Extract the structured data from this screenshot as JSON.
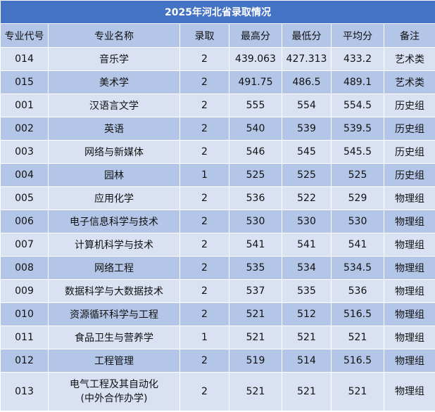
{
  "header": {
    "title": "2025年河北省录取情况"
  },
  "table": {
    "columns": [
      "专业代号",
      "专业名称",
      "录取",
      "最高分",
      "最低分",
      "平均分",
      "备注"
    ],
    "rows": [
      [
        "014",
        "音乐学",
        "2",
        "439.063",
        "427.313",
        "433.2",
        "艺术类"
      ],
      [
        "015",
        "美术学",
        "2",
        "491.75",
        "486.5",
        "489.1",
        "艺术类"
      ],
      [
        "001",
        "汉语言文学",
        "2",
        "555",
        "554",
        "554.5",
        "历史组"
      ],
      [
        "002",
        "英语",
        "2",
        "540",
        "539",
        "539.5",
        "历史组"
      ],
      [
        "003",
        "网络与新媒体",
        "2",
        "546",
        "545",
        "545.5",
        "历史组"
      ],
      [
        "004",
        "园林",
        "1",
        "525",
        "525",
        "525",
        "历史组"
      ],
      [
        "005",
        "应用化学",
        "2",
        "536",
        "522",
        "529",
        "物理组"
      ],
      [
        "006",
        "电子信息科学与技术",
        "2",
        "530",
        "530",
        "530",
        "物理组"
      ],
      [
        "007",
        "计算机科学与技术",
        "2",
        "541",
        "541",
        "541",
        "物理组"
      ],
      [
        "008",
        "网络工程",
        "2",
        "535",
        "534",
        "534.5",
        "物理组"
      ],
      [
        "009",
        "数据科学与大数据技术",
        "2",
        "537",
        "535",
        "536",
        "物理组"
      ],
      [
        "010",
        "资源循环科学与工程",
        "2",
        "521",
        "512",
        "516.5",
        "物理组"
      ],
      [
        "011",
        "食品卫生与营养学",
        "1",
        "521",
        "521",
        "521",
        "物理组"
      ],
      [
        "012",
        "工程管理",
        "2",
        "519",
        "514",
        "516.5",
        "物理组"
      ],
      [
        "013",
        "电气工程及其自动化\n(中外合作办学)",
        "2",
        "521",
        "521",
        "521",
        "物理组"
      ]
    ]
  }
}
